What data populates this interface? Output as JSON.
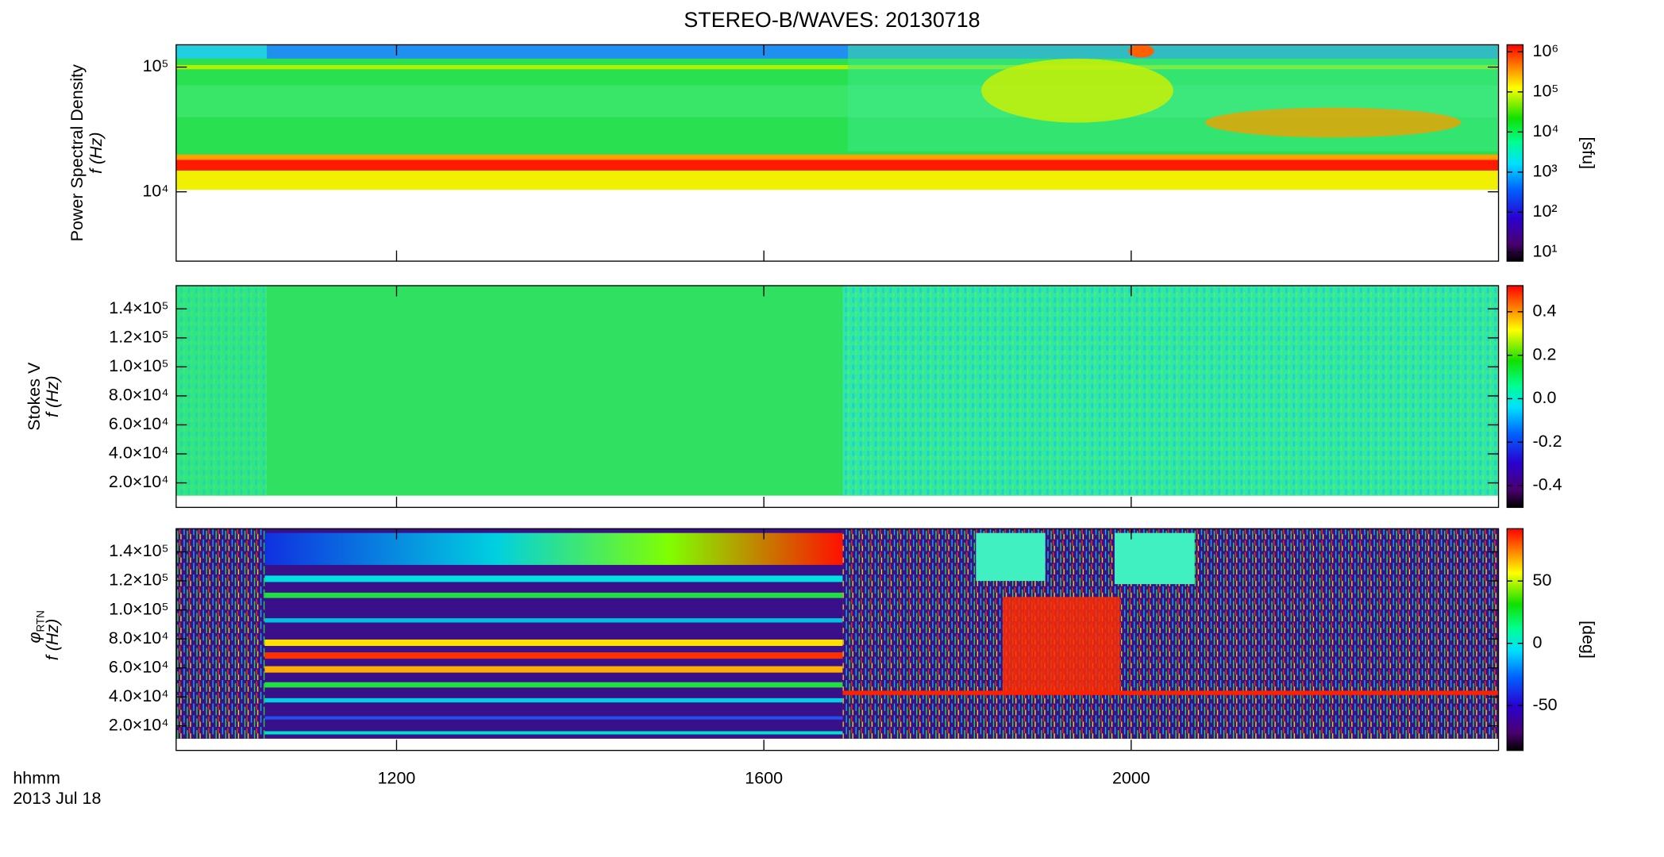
{
  "title": "STEREO-B/WAVES: 20130718",
  "time_axis": {
    "label": "hhmm",
    "date": "2013 Jul 18",
    "xlim": [
      9.6,
      24
    ],
    "xticks": [
      {
        "value": 12,
        "label": "1200"
      },
      {
        "value": 16,
        "label": "1600"
      },
      {
        "value": 20,
        "label": "2000"
      }
    ]
  },
  "chart_data": [
    {
      "type": "heatmap",
      "ylabel": [
        "Power Spectral Density",
        "f (Hz)"
      ],
      "yscale": "log",
      "ylim": [
        2780,
        151000
      ],
      "yticks": [
        {
          "value": 10000,
          "label": "10⁴"
        },
        {
          "value": 100000,
          "label": "10⁵"
        }
      ],
      "colorbar": {
        "scale": "log",
        "lim": [
          6,
          1500000
        ],
        "label": "[sfu]",
        "ticks": [
          {
            "value": 10,
            "label": "10¹"
          },
          {
            "value": 100,
            "label": "10²"
          },
          {
            "value": 1000,
            "label": "10³"
          },
          {
            "value": 10000,
            "label": "10⁴"
          },
          {
            "value": 100000,
            "label": "10⁵"
          },
          {
            "value": 1000000,
            "label": "10⁶"
          }
        ]
      }
    },
    {
      "type": "heatmap",
      "ylabel": [
        "Stokes V",
        "f (Hz)"
      ],
      "yscale": "linear",
      "ylim": [
        3100,
        156000
      ],
      "yticks": [
        {
          "value": 20000,
          "label": "2.0×10⁴"
        },
        {
          "value": 40000,
          "label": "4.0×10⁴"
        },
        {
          "value": 60000,
          "label": "6.0×10⁴"
        },
        {
          "value": 80000,
          "label": "8.0×10⁴"
        },
        {
          "value": 100000,
          "label": "1.0×10⁵"
        },
        {
          "value": 120000,
          "label": "1.2×10⁵"
        },
        {
          "value": 140000,
          "label": "1.4×10⁵"
        }
      ],
      "colorbar": {
        "scale": "linear",
        "lim": [
          -0.5,
          0.52
        ],
        "ticks": [
          -0.4,
          -0.2,
          {
            "value": 0,
            "label": "0.0"
          },
          0.2,
          0.4
        ]
      }
    },
    {
      "type": "heatmap",
      "ylabel": [
        "φ",
        "RTN",
        "f (Hz)"
      ],
      "yscale": "linear",
      "ylim": [
        3100,
        156000
      ],
      "yticks": [
        {
          "value": 20000,
          "label": "2.0×10⁴"
        },
        {
          "value": 40000,
          "label": "4.0×10⁴"
        },
        {
          "value": 60000,
          "label": "6.0×10⁴"
        },
        {
          "value": 80000,
          "label": "8.0×10⁴"
        },
        {
          "value": 100000,
          "label": "1.0×10⁵"
        },
        {
          "value": 120000,
          "label": "1.2×10⁵"
        },
        {
          "value": 140000,
          "label": "1.4×10⁵"
        }
      ],
      "colorbar": {
        "scale": "linear",
        "lim": [
          -86,
          92
        ],
        "label": "[deg]",
        "ticks": [
          -50,
          0,
          50
        ]
      }
    }
  ]
}
